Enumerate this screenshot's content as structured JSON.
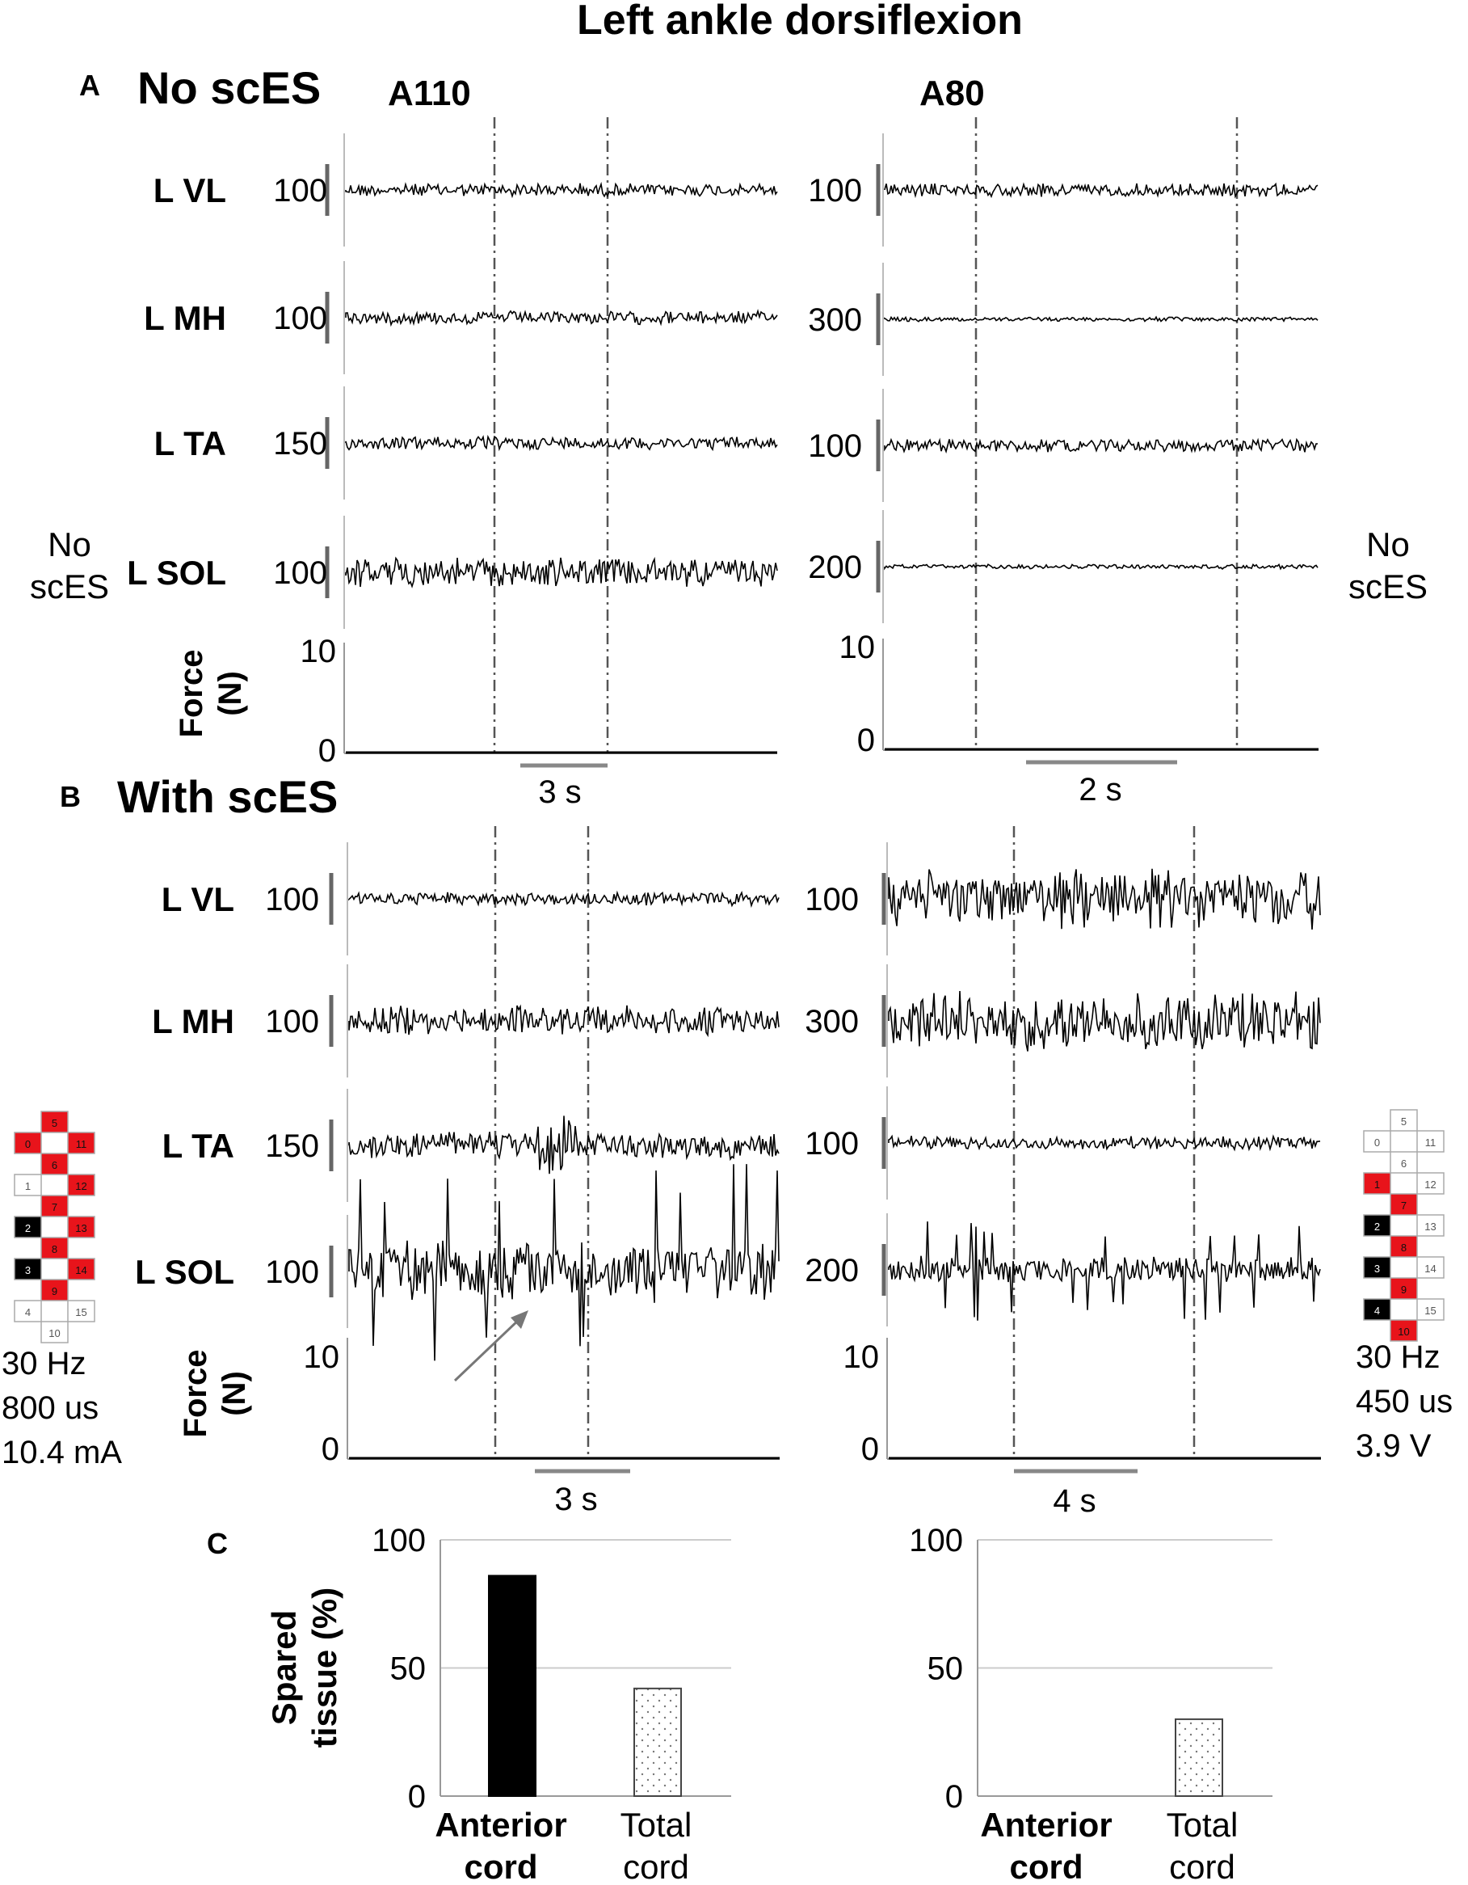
{
  "figure": {
    "title": "Left ankle dorsiflexion",
    "panel_a": {
      "letter": "A",
      "title": "No scES"
    },
    "panel_b": {
      "letter": "B",
      "title": "With scES"
    },
    "panel_c": {
      "letter": "C"
    },
    "subjects": [
      "A110",
      "A80"
    ],
    "side_label_a_left": [
      "No",
      "scES"
    ],
    "side_label_a_right": [
      "No",
      "scES"
    ],
    "force_label": [
      "Force",
      "(N)"
    ],
    "stim_left": [
      "30 Hz",
      "800 us",
      "10.4 mA"
    ],
    "stim_right": [
      "30 Hz",
      "450 us",
      "3.9 V"
    ],
    "colors": {
      "active_electrode": "#e8141b",
      "cathode_electrode": "#000000",
      "inactive_electrode": "#ffffff",
      "marker": "#555555"
    }
  },
  "electrode_arrays": {
    "left": {
      "positions": [
        "5",
        "0",
        "11",
        "6",
        "1",
        "12",
        "7",
        "2",
        "13",
        "8",
        "3",
        "14",
        "9",
        "4",
        "15",
        "10"
      ],
      "states": [
        "red",
        "red",
        "red",
        "red",
        "white",
        "red",
        "red",
        "black",
        "red",
        "red",
        "black",
        "red",
        "red",
        "white",
        "white",
        "white"
      ]
    },
    "right": {
      "positions": [
        "5",
        "0",
        "11",
        "6",
        "1",
        "12",
        "7",
        "2",
        "13",
        "8",
        "3",
        "14",
        "9",
        "4",
        "15",
        "10"
      ],
      "states": [
        "white",
        "white",
        "white",
        "white",
        "red",
        "white",
        "red",
        "black",
        "white",
        "red",
        "black",
        "white",
        "red",
        "black",
        "white",
        "red"
      ]
    }
  },
  "chart_data": [
    {
      "type": "line",
      "panel": "A",
      "subject": "A110",
      "series": [
        {
          "name": "L VL",
          "scale": "100",
          "amplitude": "low"
        },
        {
          "name": "L MH",
          "scale": "100",
          "amplitude": "low"
        },
        {
          "name": "L TA",
          "scale": "150",
          "amplitude": "low"
        },
        {
          "name": "L SOL",
          "scale": "100",
          "amplitude": "moderate"
        }
      ],
      "force": {
        "ylim": [
          0,
          10
        ],
        "ticks": [
          "10",
          "0"
        ],
        "values": "flat at 0"
      },
      "time_scale": "3 s"
    },
    {
      "type": "line",
      "panel": "A",
      "subject": "A80",
      "series": [
        {
          "name": "L VL",
          "scale": "100",
          "amplitude": "low"
        },
        {
          "name": "L MH",
          "scale": "300",
          "amplitude": "very low"
        },
        {
          "name": "L TA",
          "scale": "100",
          "amplitude": "low"
        },
        {
          "name": "L SOL",
          "scale": "200",
          "amplitude": "very low"
        }
      ],
      "force": {
        "ylim": [
          0,
          10
        ],
        "ticks": [
          "10",
          "0"
        ],
        "values": "flat at 0"
      },
      "time_scale": "2 s"
    },
    {
      "type": "line",
      "panel": "B",
      "subject": "A110",
      "series": [
        {
          "name": "L VL",
          "scale": "100",
          "amplitude": "low"
        },
        {
          "name": "L MH",
          "scale": "100",
          "amplitude": "moderate"
        },
        {
          "name": "L TA",
          "scale": "150",
          "amplitude": "moderate, burst after first marker"
        },
        {
          "name": "L SOL",
          "scale": "100",
          "amplitude": "high"
        }
      ],
      "force": {
        "ylim": [
          0,
          10
        ],
        "ticks": [
          "10",
          "0"
        ],
        "values": "flat at 0"
      },
      "time_scale": "3 s"
    },
    {
      "type": "line",
      "panel": "B",
      "subject": "A80",
      "series": [
        {
          "name": "L VL",
          "scale": "100",
          "amplitude": "high"
        },
        {
          "name": "L MH",
          "scale": "300",
          "amplitude": "high"
        },
        {
          "name": "L TA",
          "scale": "100",
          "amplitude": "low"
        },
        {
          "name": "L SOL",
          "scale": "200",
          "amplitude": "moderate with spikes"
        }
      ],
      "force": {
        "ylim": [
          0,
          10
        ],
        "ticks": [
          "10",
          "0"
        ],
        "values": "flat at 0"
      },
      "time_scale": "4 s"
    },
    {
      "type": "bar",
      "panel": "C",
      "subject": "A110",
      "categories": [
        "Anterior cord",
        "Total cord"
      ],
      "values": [
        86,
        42
      ],
      "ylabel": "Spared tissue (%)",
      "ylim": [
        0,
        100
      ],
      "yticks": [
        "100",
        "50",
        "0"
      ]
    },
    {
      "type": "bar",
      "panel": "C",
      "subject": "A80",
      "categories": [
        "Anterior cord",
        "Total cord"
      ],
      "values": [
        0,
        30
      ],
      "ylabel": "",
      "ylim": [
        0,
        100
      ],
      "yticks": [
        "100",
        "50",
        "0"
      ]
    }
  ]
}
